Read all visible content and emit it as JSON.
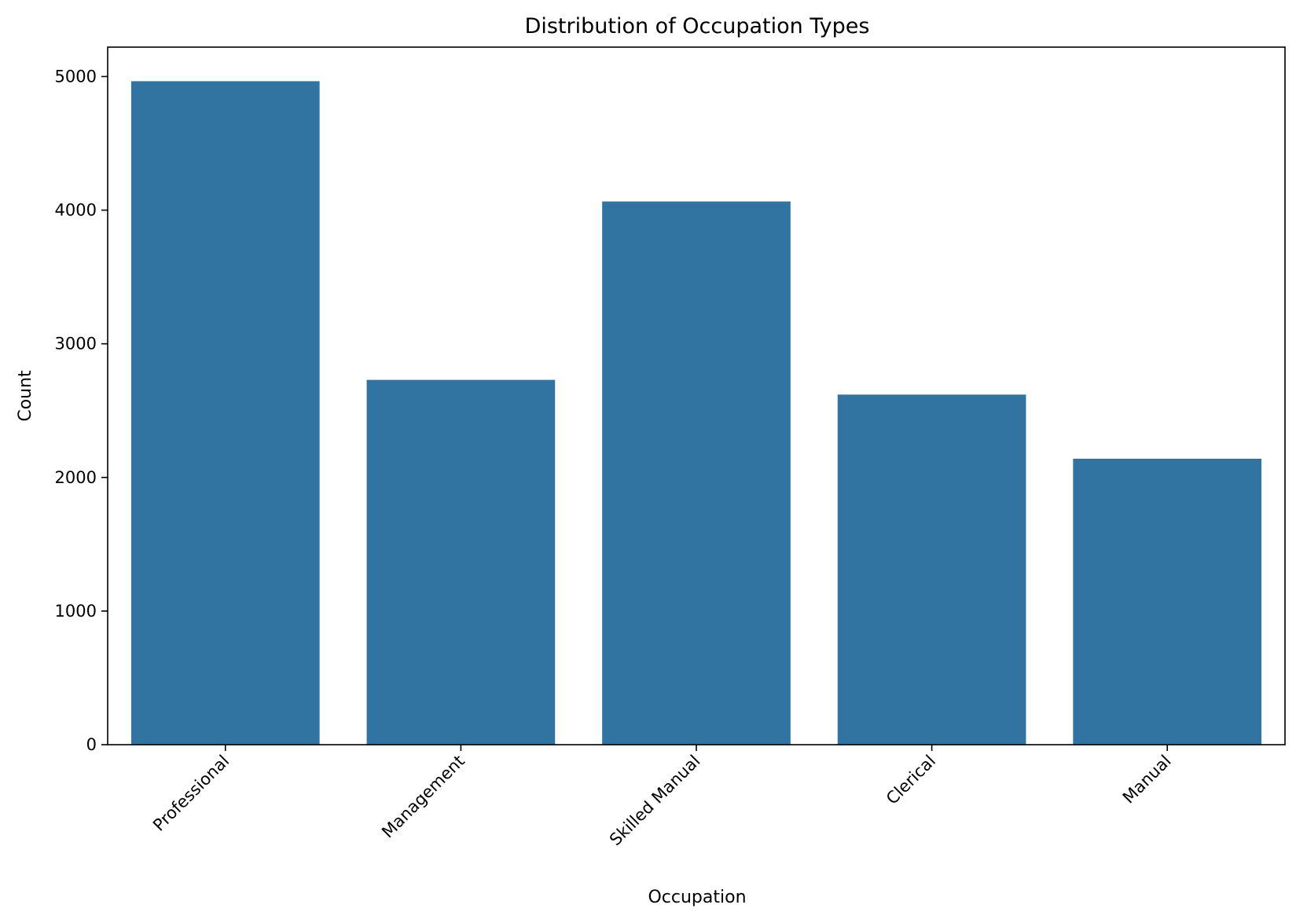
{
  "chart_data": {
    "type": "bar",
    "title": "Distribution of Occupation Types",
    "xlabel": "Occupation",
    "ylabel": "Count",
    "categories": [
      "Professional",
      "Management",
      "Skilled Manual",
      "Clerical",
      "Manual"
    ],
    "values": [
      4965,
      2730,
      4065,
      2620,
      2140
    ],
    "ylim": [
      0,
      5220
    ],
    "yticks": [
      0,
      1000,
      2000,
      3000,
      4000,
      5000
    ],
    "bar_color": "#3274a1",
    "grid": false,
    "legend": "none"
  }
}
